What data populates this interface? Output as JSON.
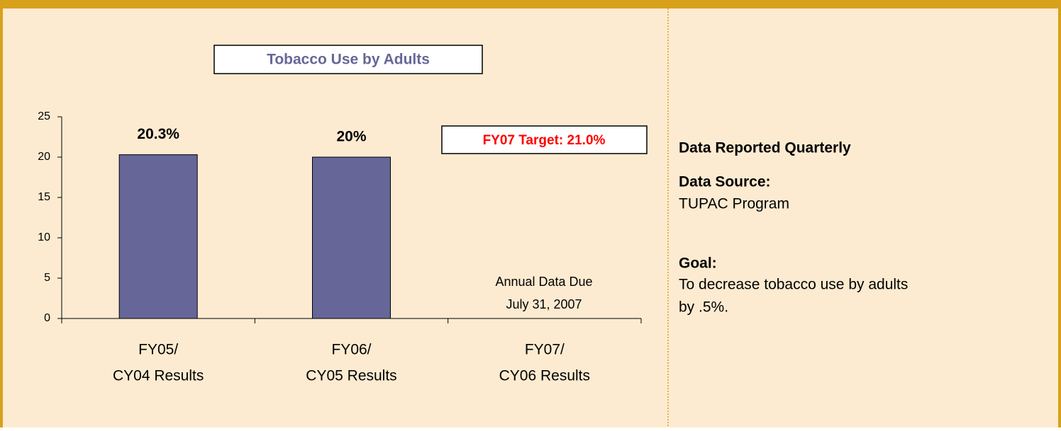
{
  "chart_data": {
    "type": "bar",
    "title": "Tobacco Use by Adults",
    "categories": [
      [
        "FY05/",
        "CY04 Results"
      ],
      [
        "FY06/",
        "CY05 Results"
      ],
      [
        "FY07/",
        "CY06 Results"
      ]
    ],
    "values": [
      20.3,
      20,
      null
    ],
    "value_labels": [
      "20.3%",
      "20%",
      null
    ],
    "color": "#666699",
    "ylim": [
      0,
      25
    ],
    "yticks": [
      0,
      5,
      10,
      15,
      20,
      25
    ],
    "target_label": "FY07 Target: 21.0%",
    "annotation": [
      "Annual Data Due",
      "July 31, 2007"
    ]
  },
  "side_panel": {
    "heading": "Data Reported Quarterly",
    "source_label": "Data Source:",
    "source": "TUPAC Program",
    "goal_label": "Goal:",
    "goal": [
      "To decrease tobacco use by adults",
      "by .5%."
    ]
  }
}
